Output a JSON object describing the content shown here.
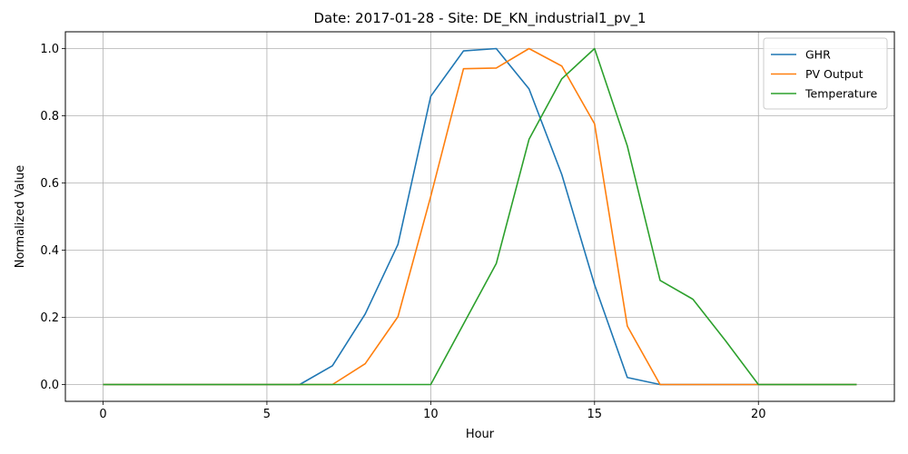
{
  "chart_data": {
    "type": "line",
    "title": "Date: 2017-01-28 - Site: DE_KN_industrial1_pv_1",
    "xlabel": "Hour",
    "ylabel": "Normalized Value",
    "xlim": [
      -1.15,
      24.15
    ],
    "ylim": [
      -0.05,
      1.05
    ],
    "xticks": [
      0,
      5,
      10,
      15,
      20
    ],
    "yticks": [
      0.0,
      0.2,
      0.4,
      0.6,
      0.8,
      1.0
    ],
    "xtick_labels": [
      "0",
      "5",
      "10",
      "15",
      "20"
    ],
    "ytick_labels": [
      "0.0",
      "0.2",
      "0.4",
      "0.6",
      "0.8",
      "1.0"
    ],
    "grid": true,
    "legend_position": "top-right",
    "x": [
      0,
      1,
      2,
      3,
      4,
      5,
      6,
      7,
      8,
      9,
      10,
      11,
      12,
      13,
      14,
      15,
      16,
      17,
      18,
      19,
      20,
      21,
      22,
      23
    ],
    "series": [
      {
        "name": "GHR",
        "color": "#1f77b4",
        "values": [
          0,
          0,
          0,
          0,
          0,
          0,
          0,
          0.056,
          0.21,
          0.417,
          0.858,
          0.993,
          1.0,
          0.88,
          0.625,
          0.297,
          0.021,
          0,
          0,
          0,
          0,
          0,
          0,
          0
        ]
      },
      {
        "name": "PV Output",
        "color": "#ff7f0e",
        "values": [
          0,
          0,
          0,
          0,
          0,
          0,
          0,
          0,
          0.062,
          0.202,
          0.56,
          0.94,
          0.942,
          1.0,
          0.948,
          0.776,
          0.174,
          0,
          0,
          0,
          0,
          0,
          0,
          0
        ]
      },
      {
        "name": "Temperature",
        "color": "#2ca02c",
        "values": [
          0,
          0,
          0,
          0,
          0,
          0,
          0,
          0,
          0,
          0,
          0,
          0.18,
          0.36,
          0.73,
          0.91,
          1.0,
          0.71,
          0.31,
          0.254,
          0.13,
          0,
          0,
          0,
          0
        ]
      }
    ]
  }
}
